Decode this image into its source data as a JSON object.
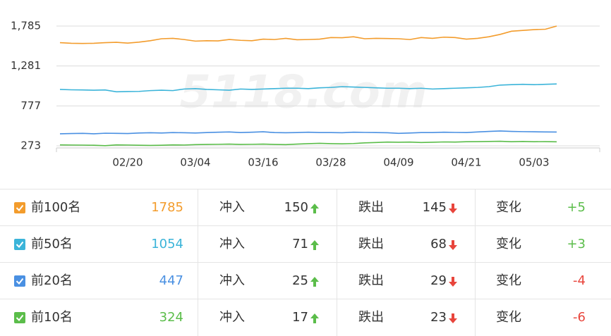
{
  "chart_data": {
    "type": "line",
    "watermark": "5118.com",
    "categories": [
      null,
      null,
      null,
      null,
      null,
      null,
      "02/20",
      null,
      null,
      null,
      null,
      null,
      "03/04",
      null,
      null,
      null,
      null,
      null,
      "03/16",
      null,
      null,
      null,
      null,
      null,
      "03/28",
      null,
      null,
      null,
      null,
      null,
      "04/09",
      null,
      null,
      null,
      null,
      null,
      "04/21",
      null,
      null,
      null,
      null,
      null,
      "05/03",
      null,
      null
    ],
    "ylim": [
      273,
      1785
    ],
    "yticks": [
      273,
      777,
      {
        "value": 1281,
        "label": "1,281"
      },
      {
        "value": 1785,
        "label": "1,785"
      }
    ],
    "grid": true,
    "series": [
      {
        "name": "前100名",
        "color": "#f39c2c",
        "values": [
          1575,
          1568,
          1565,
          1568,
          1575,
          1580,
          1570,
          1582,
          1600,
          1625,
          1630,
          1615,
          1595,
          1600,
          1598,
          1615,
          1605,
          1600,
          1620,
          1615,
          1630,
          1612,
          1615,
          1620,
          1640,
          1638,
          1650,
          1625,
          1630,
          1628,
          1625,
          1615,
          1640,
          1630,
          1645,
          1640,
          1620,
          1630,
          1650,
          1680,
          1720,
          1730,
          1740,
          1745,
          1785
        ]
      },
      {
        "name": "前50名",
        "color": "#3bb4d9",
        "values": [
          985,
          980,
          978,
          975,
          978,
          955,
          958,
          960,
          970,
          975,
          970,
          990,
          995,
          985,
          980,
          975,
          990,
          985,
          990,
          995,
          1000,
          1000,
          995,
          1005,
          1010,
          1020,
          1015,
          1010,
          1005,
          1000,
          1000,
          995,
          1000,
          990,
          995,
          1000,
          1005,
          1010,
          1020,
          1040,
          1045,
          1050,
          1045,
          1050,
          1054
        ]
      },
      {
        "name": "前20名",
        "color": "#4a90e2",
        "values": [
          425,
          428,
          430,
          425,
          432,
          430,
          428,
          435,
          438,
          435,
          440,
          438,
          435,
          440,
          445,
          448,
          440,
          445,
          450,
          440,
          438,
          440,
          445,
          440,
          440,
          438,
          445,
          442,
          440,
          438,
          430,
          435,
          440,
          440,
          445,
          442,
          440,
          448,
          455,
          460,
          455,
          452,
          450,
          448,
          447
        ]
      },
      {
        "name": "前10名",
        "color": "#5bbd4a",
        "values": [
          285,
          283,
          282,
          280,
          275,
          285,
          283,
          280,
          278,
          280,
          285,
          283,
          288,
          290,
          292,
          295,
          290,
          292,
          295,
          290,
          288,
          295,
          300,
          305,
          300,
          298,
          302,
          310,
          315,
          320,
          318,
          320,
          315,
          318,
          322,
          320,
          325,
          326,
          328,
          330,
          325,
          328,
          325,
          326,
          324
        ]
      }
    ]
  },
  "table": {
    "rows": [
      {
        "value": "1785",
        "in_label": "冲入",
        "in": "150",
        "out_label": "跌出",
        "out": "145",
        "change_label": "变化",
        "change": "+5"
      },
      {
        "value": "1054",
        "in_label": "冲入",
        "in": "71",
        "out_label": "跌出",
        "out": "68",
        "change_label": "变化",
        "change": "+3"
      },
      {
        "value": "447",
        "in_label": "冲入",
        "in": "25",
        "out_label": "跌出",
        "out": "29",
        "change_label": "变化",
        "change": "-4"
      },
      {
        "value": "324",
        "in_label": "冲入",
        "in": "17",
        "out_label": "跌出",
        "out": "23",
        "change_label": "变化",
        "change": "-6"
      }
    ]
  }
}
